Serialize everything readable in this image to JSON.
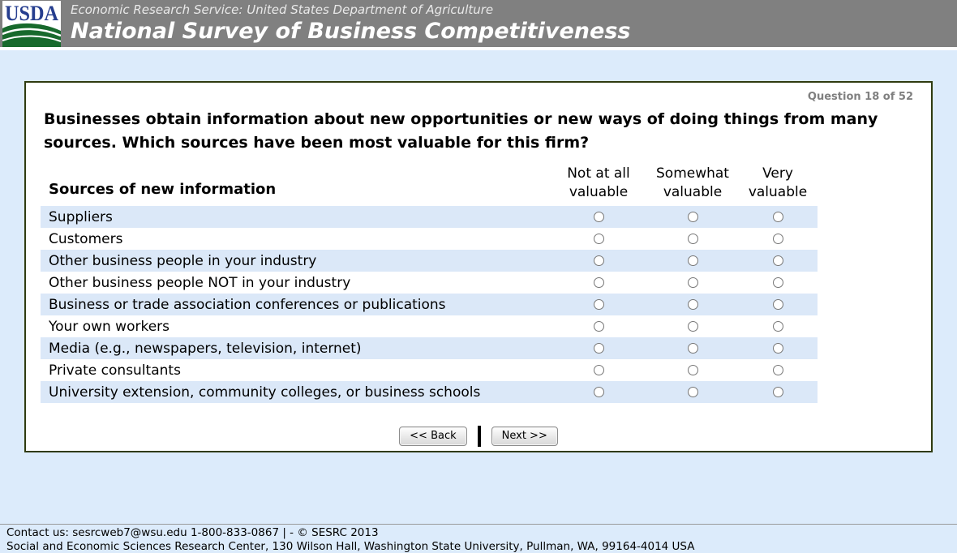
{
  "header": {
    "logo": {
      "text": "USDA"
    },
    "agency_line": "Economic Research Service: United States Department of Agriculture",
    "survey_title": "National Survey of Business Competitiveness"
  },
  "question": {
    "counter": "Question 18 of 52",
    "text": "Businesses obtain information about new opportunities or new ways of doing things from many sources. Which sources have been most valuable for this firm?"
  },
  "table": {
    "row_header": "Sources of new information",
    "columns": [
      "Not at all valuable",
      "Somewhat valuable",
      "Very valuable"
    ],
    "rows": [
      "Suppliers",
      "Customers",
      "Other business people in your industry",
      "Other business people NOT in your industry",
      "Business or trade association conferences or publications",
      "Your own workers",
      "Media (e.g., newspapers, television, internet)",
      "Private consultants",
      "University extension, community colleges, or business schools"
    ],
    "selected": []
  },
  "nav": {
    "back_label": "<< Back",
    "next_label": "Next >>"
  },
  "footer": {
    "line1": "Contact us: sesrcweb7@wsu.edu 1-800-833-0867 | - © SESRC 2013",
    "line2": "Social and Economic Sciences Research Center, 130 Wilson Hall, Washington State University, Pullman, WA, 99164-4014 USA"
  },
  "colors": {
    "header_bg": "#808080",
    "page_bg": "#dcebfb",
    "row_stripe": "#dbe8f8",
    "box_border": "#2f3b10",
    "counter_text": "#808080",
    "logo_navy": "#263e8f",
    "logo_green": "#17692c"
  }
}
